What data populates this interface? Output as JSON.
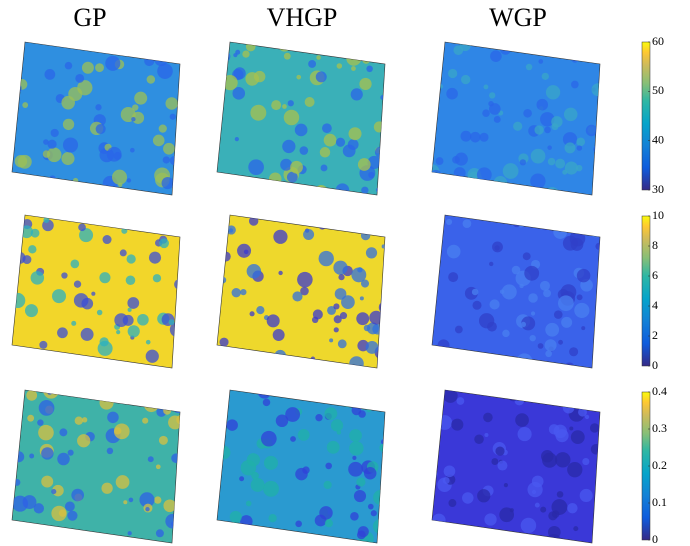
{
  "columns": [
    "GP",
    "VHGP",
    "WGP"
  ],
  "colorbars": [
    {
      "lim": [
        30,
        60
      ],
      "ticks": [
        30,
        40,
        50,
        60
      ]
    },
    {
      "lim": [
        0,
        10
      ],
      "ticks": [
        0,
        2,
        4,
        6,
        8,
        10
      ]
    },
    {
      "lim": [
        0,
        0.4
      ],
      "ticks": [
        0,
        0.1,
        0.2,
        0.3,
        0.4
      ]
    }
  ]
}
